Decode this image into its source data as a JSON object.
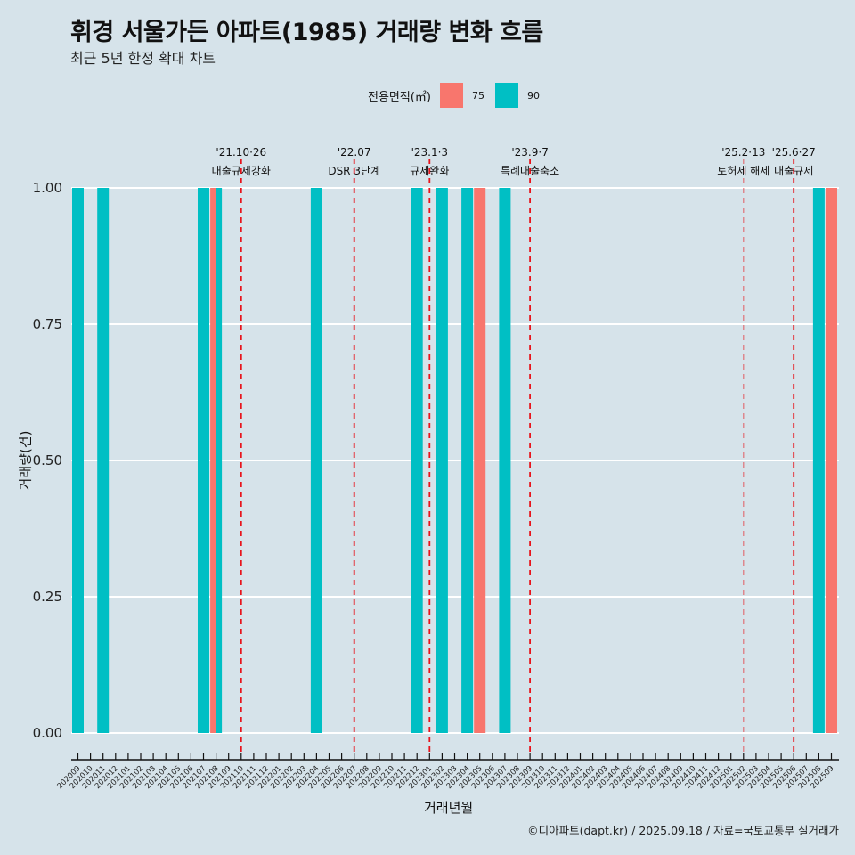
{
  "title": "휘경 서울가든 아파트(1985) 거래량 변화 흐름",
  "subtitle": "최근 5년 한정 확대 차트",
  "caption": "©디아파트(dapt.kr) / 2025.09.18 / 자료=국토교통부 실거래가",
  "colors": {
    "background": "#d6e3ea",
    "area75": "#f8766d",
    "area90": "#00bfc4",
    "event_line": "#e8141c",
    "grid": "#ffffff"
  },
  "chart_data": {
    "type": "bar",
    "title": "휘경 서울가든 아파트(1985) 거래량 변화 흐름",
    "subtitle": "최근 5년 한정 확대 차트",
    "xlabel": "거래년월",
    "ylabel": "거래량(건)",
    "ylim": [
      0,
      1
    ],
    "yticks": [
      "0.00",
      "0.25",
      "0.50",
      "0.75",
      "1.00"
    ],
    "ytick_values": [
      0,
      0.25,
      0.5,
      0.75,
      1.0
    ],
    "grid": true,
    "legend": {
      "title": "전용면적(㎡)",
      "position": "top",
      "entries": [
        {
          "label": "75",
          "color": "#f8766d"
        },
        {
          "label": "90",
          "color": "#00bfc4"
        }
      ]
    },
    "categories": [
      "202009",
      "202010",
      "202011",
      "202012",
      "202101",
      "202102",
      "202103",
      "202104",
      "202105",
      "202106",
      "202107",
      "202108",
      "202109",
      "202110",
      "202111",
      "202112",
      "202201",
      "202202",
      "202203",
      "202204",
      "202205",
      "202206",
      "202207",
      "202208",
      "202209",
      "202210",
      "202211",
      "202212",
      "202301",
      "202302",
      "202303",
      "202304",
      "202305",
      "202306",
      "202307",
      "202308",
      "202309",
      "202310",
      "202311",
      "202312",
      "202401",
      "202402",
      "202403",
      "202404",
      "202405",
      "202406",
      "202407",
      "202408",
      "202409",
      "202410",
      "202411",
      "202412",
      "202501",
      "202502",
      "202503",
      "202504",
      "202505",
      "202506",
      "202507",
      "202508",
      "202509"
    ],
    "bars": [
      {
        "month": "202009",
        "area": "90",
        "value": 1
      },
      {
        "month": "202011",
        "area": "90",
        "value": 1
      },
      {
        "month": "202107",
        "area": "90",
        "value": 1
      },
      {
        "month": "202108",
        "area": "75",
        "value": 1,
        "dodge": "left"
      },
      {
        "month": "202108",
        "area": "90",
        "value": 1,
        "dodge": "right"
      },
      {
        "month": "202204",
        "area": "90",
        "value": 1
      },
      {
        "month": "202212",
        "area": "90",
        "value": 1
      },
      {
        "month": "202302",
        "area": "90",
        "value": 1
      },
      {
        "month": "202304",
        "area": "90",
        "value": 1
      },
      {
        "month": "202305",
        "area": "75",
        "value": 1
      },
      {
        "month": "202307",
        "area": "90",
        "value": 1
      },
      {
        "month": "202508",
        "area": "90",
        "value": 1
      },
      {
        "month": "202509",
        "area": "75",
        "value": 1
      }
    ],
    "events": [
      {
        "month": "202110",
        "date": "'21.10·26",
        "label": "대출규제강화",
        "style": "strong"
      },
      {
        "month": "202207",
        "date": "'22.07",
        "label": "DSR 3단계",
        "style": "strong"
      },
      {
        "month": "202301",
        "date": "'23.1·3",
        "label": "규제완화",
        "style": "strong"
      },
      {
        "month": "202309",
        "date": "'23.9·7",
        "label": "특례대출축소",
        "style": "strong"
      },
      {
        "month": "202502",
        "date": "'25.2·13",
        "label": "토허제 해제",
        "style": "light"
      },
      {
        "month": "202506",
        "date": "'25.6·27",
        "label": "대출규제",
        "style": "strong"
      }
    ]
  }
}
